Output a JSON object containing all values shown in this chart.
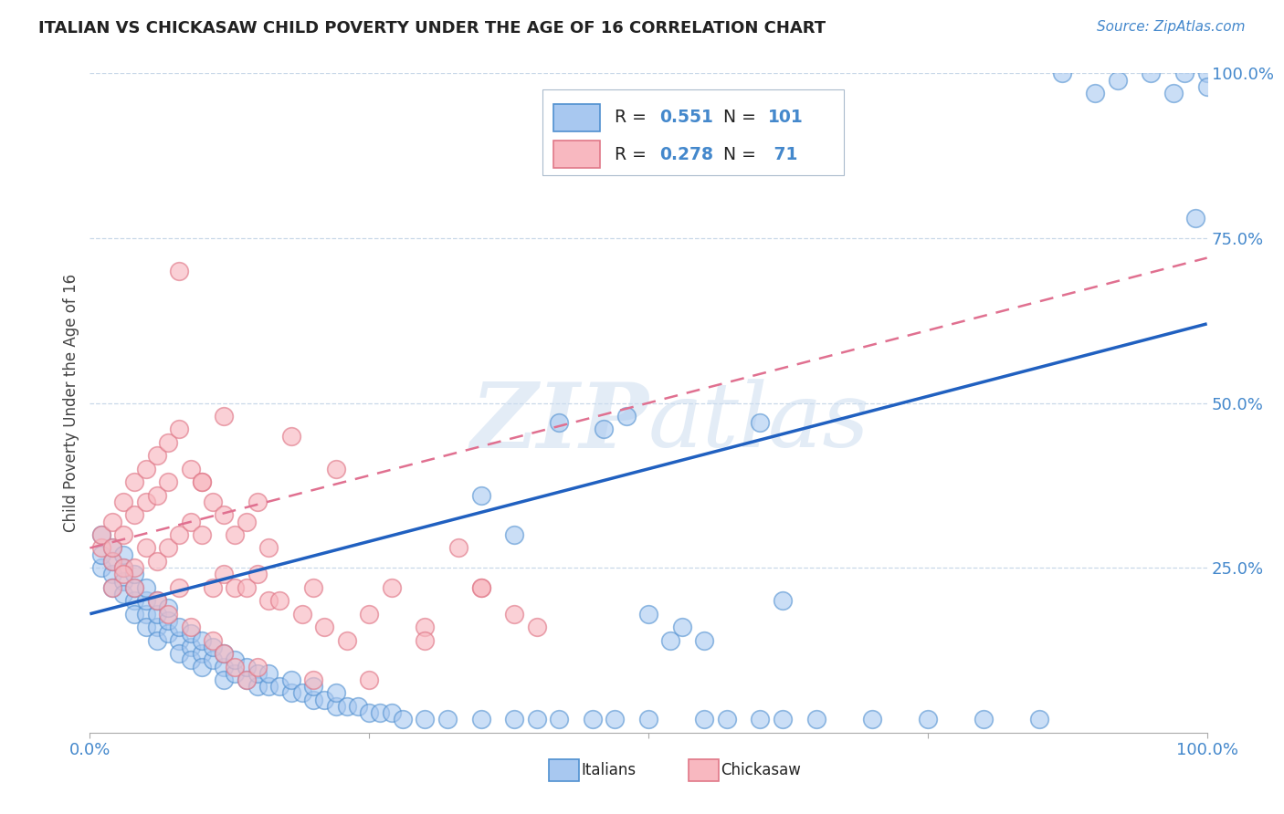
{
  "title": "ITALIAN VS CHICKASAW CHILD POVERTY UNDER THE AGE OF 16 CORRELATION CHART",
  "source": "Source: ZipAtlas.com",
  "ylabel": "Child Poverty Under the Age of 16",
  "xlim": [
    0,
    1
  ],
  "ylim": [
    0,
    1
  ],
  "watermark": "ZIPatlas",
  "legend_R1": "0.551",
  "legend_N1": "101",
  "legend_R2": "0.278",
  "legend_N2": "71",
  "color_italian": "#a8c8f0",
  "color_italian_edge": "#5090d0",
  "color_chickasaw": "#f8b8c0",
  "color_chickasaw_edge": "#e07888",
  "color_italian_line": "#2060c0",
  "color_chickasaw_line": "#e07090",
  "color_text_blue": "#4488cc",
  "color_text_dark": "#3355aa",
  "background_color": "#ffffff",
  "grid_color": "#c8d8e8",
  "italian_line_start_y": 0.18,
  "italian_line_end_y": 0.62,
  "chickasaw_line_start_x": 0.0,
  "chickasaw_line_start_y": 0.28,
  "chickasaw_line_end_x": 1.0,
  "chickasaw_line_end_y": 0.72,
  "it_x": [
    0.01,
    0.01,
    0.01,
    0.02,
    0.02,
    0.02,
    0.02,
    0.03,
    0.03,
    0.03,
    0.03,
    0.04,
    0.04,
    0.04,
    0.04,
    0.05,
    0.05,
    0.05,
    0.05,
    0.06,
    0.06,
    0.06,
    0.06,
    0.07,
    0.07,
    0.07,
    0.08,
    0.08,
    0.08,
    0.09,
    0.09,
    0.09,
    0.1,
    0.1,
    0.1,
    0.11,
    0.11,
    0.12,
    0.12,
    0.12,
    0.13,
    0.13,
    0.14,
    0.14,
    0.15,
    0.15,
    0.16,
    0.16,
    0.17,
    0.18,
    0.18,
    0.19,
    0.2,
    0.2,
    0.21,
    0.22,
    0.22,
    0.23,
    0.24,
    0.25,
    0.26,
    0.27,
    0.28,
    0.3,
    0.32,
    0.35,
    0.38,
    0.4,
    0.42,
    0.45,
    0.47,
    0.5,
    0.52,
    0.55,
    0.57,
    0.6,
    0.62,
    0.65,
    0.7,
    0.75,
    0.8,
    0.85,
    0.87,
    0.9,
    0.92,
    0.95,
    0.97,
    0.98,
    0.99,
    1.0,
    1.0,
    0.42,
    0.38,
    0.46,
    0.48,
    0.5,
    0.53,
    0.55,
    0.35,
    0.6,
    0.62
  ],
  "it_y": [
    0.3,
    0.25,
    0.27,
    0.28,
    0.24,
    0.26,
    0.22,
    0.23,
    0.25,
    0.21,
    0.27,
    0.2,
    0.22,
    0.18,
    0.24,
    0.18,
    0.2,
    0.22,
    0.16,
    0.16,
    0.18,
    0.2,
    0.14,
    0.15,
    0.17,
    0.19,
    0.14,
    0.16,
    0.12,
    0.13,
    0.15,
    0.11,
    0.12,
    0.14,
    0.1,
    0.11,
    0.13,
    0.1,
    0.12,
    0.08,
    0.09,
    0.11,
    0.08,
    0.1,
    0.07,
    0.09,
    0.07,
    0.09,
    0.07,
    0.06,
    0.08,
    0.06,
    0.05,
    0.07,
    0.05,
    0.04,
    0.06,
    0.04,
    0.04,
    0.03,
    0.03,
    0.03,
    0.02,
    0.02,
    0.02,
    0.02,
    0.02,
    0.02,
    0.02,
    0.02,
    0.02,
    0.02,
    0.14,
    0.02,
    0.02,
    0.02,
    0.02,
    0.02,
    0.02,
    0.02,
    0.02,
    0.02,
    1.0,
    0.97,
    0.99,
    1.0,
    0.97,
    1.0,
    0.78,
    1.0,
    0.98,
    0.47,
    0.3,
    0.46,
    0.48,
    0.18,
    0.16,
    0.14,
    0.36,
    0.47,
    0.2
  ],
  "ch_x": [
    0.01,
    0.01,
    0.02,
    0.02,
    0.02,
    0.03,
    0.03,
    0.03,
    0.04,
    0.04,
    0.04,
    0.05,
    0.05,
    0.05,
    0.06,
    0.06,
    0.06,
    0.07,
    0.07,
    0.07,
    0.08,
    0.08,
    0.08,
    0.09,
    0.09,
    0.1,
    0.1,
    0.11,
    0.11,
    0.12,
    0.12,
    0.12,
    0.13,
    0.13,
    0.14,
    0.14,
    0.15,
    0.15,
    0.16,
    0.16,
    0.17,
    0.18,
    0.19,
    0.2,
    0.21,
    0.22,
    0.23,
    0.25,
    0.27,
    0.3,
    0.33,
    0.35,
    0.38,
    0.4,
    0.02,
    0.03,
    0.04,
    0.06,
    0.07,
    0.08,
    0.09,
    0.1,
    0.11,
    0.12,
    0.13,
    0.14,
    0.15,
    0.2,
    0.25,
    0.3,
    0.35
  ],
  "ch_y": [
    0.28,
    0.3,
    0.26,
    0.32,
    0.28,
    0.35,
    0.3,
    0.25,
    0.38,
    0.33,
    0.25,
    0.4,
    0.35,
    0.28,
    0.42,
    0.36,
    0.26,
    0.44,
    0.38,
    0.28,
    0.46,
    0.3,
    0.22,
    0.4,
    0.32,
    0.38,
    0.3,
    0.35,
    0.22,
    0.33,
    0.24,
    0.48,
    0.3,
    0.22,
    0.32,
    0.22,
    0.35,
    0.24,
    0.28,
    0.2,
    0.2,
    0.45,
    0.18,
    0.22,
    0.16,
    0.4,
    0.14,
    0.18,
    0.22,
    0.16,
    0.28,
    0.22,
    0.18,
    0.16,
    0.22,
    0.24,
    0.22,
    0.2,
    0.18,
    0.7,
    0.16,
    0.38,
    0.14,
    0.12,
    0.1,
    0.08,
    0.1,
    0.08,
    0.08,
    0.14,
    0.22
  ]
}
